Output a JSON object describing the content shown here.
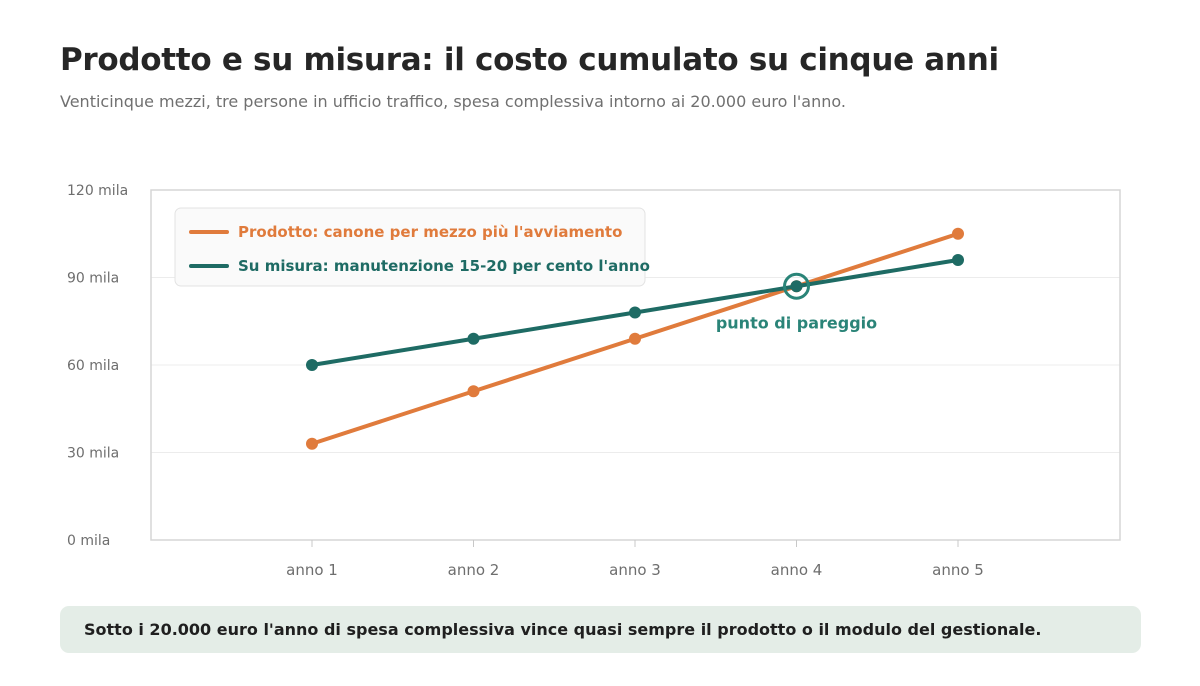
{
  "title": "Prodotto e su misura: il costo cumulato su cinque anni",
  "subtitle": "Venticinque mezzi, tre persone in ufficio traffico, spesa complessiva intorno ai 20.000 euro l'anno.",
  "chart_data": {
    "type": "line",
    "categories": [
      "anno 1",
      "anno 2",
      "anno 3",
      "anno 4",
      "anno 5"
    ],
    "y_ticks": [
      "0 mila",
      "30 mila",
      "60 mila",
      "90 mila",
      "120 mila"
    ],
    "y_tick_values": [
      0,
      30,
      60,
      90,
      120
    ],
    "ylim": [
      0,
      120
    ],
    "grid": true,
    "legend_position": "top-left",
    "series": [
      {
        "name": "Prodotto: canone per mezzo più l'avviamento",
        "color": "#e07b3c",
        "values": [
          33,
          51,
          69,
          87,
          105
        ]
      },
      {
        "name": "Su misura: manutenzione 15-20 per cento l'anno",
        "color": "#1e6b64",
        "values": [
          60,
          69,
          78,
          87,
          96
        ]
      }
    ],
    "annotation": {
      "text": "punto di pareggio",
      "category": "anno 4",
      "value": 87,
      "color": "#2a8478"
    }
  },
  "callout": "Sotto i 20.000 euro l'anno di spesa complessiva vince quasi sempre il prodotto o il modulo del gestionale."
}
